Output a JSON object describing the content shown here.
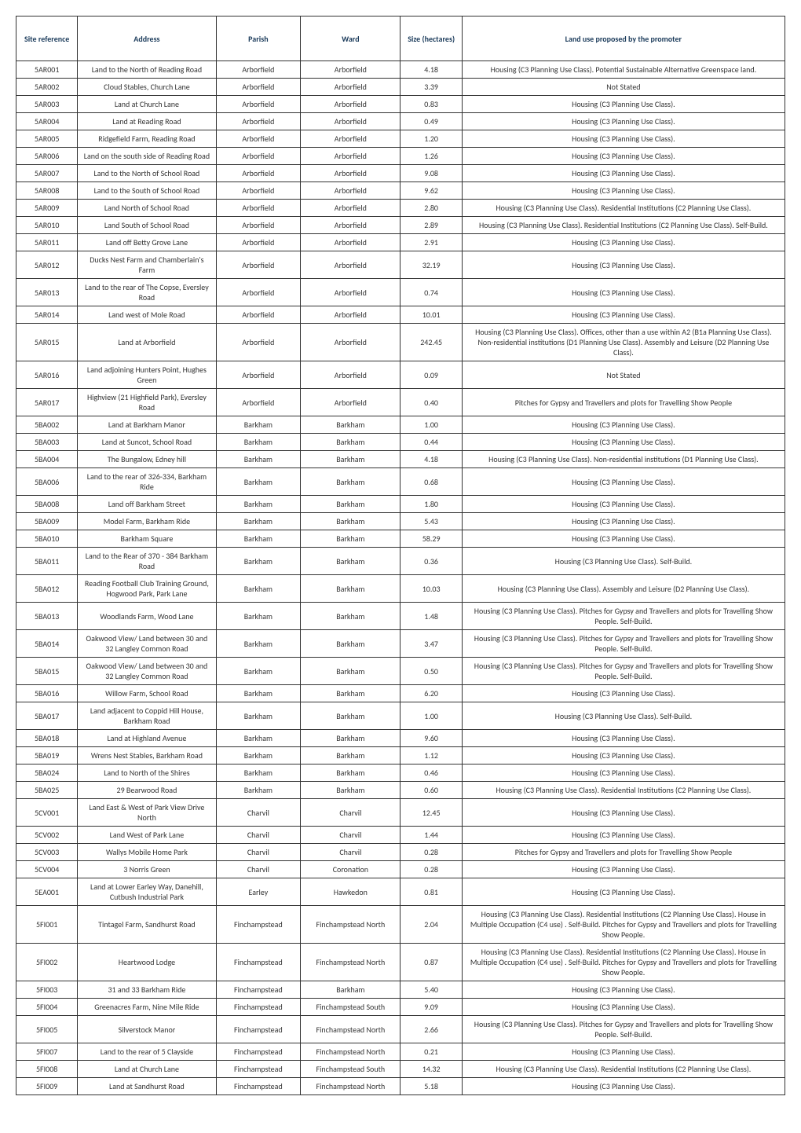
{
  "columns": [
    "Site reference",
    "Address",
    "Parish",
    "Ward",
    "Size (hectares)",
    "Land use proposed by the promoter"
  ],
  "rows": [
    [
      "5AR001",
      "Land to the North of Reading Road",
      "Arborfield",
      "Arborfield",
      "4.18",
      "Housing (C3 Planning Use Class). Potential Sustainable Alternative Greenspace land."
    ],
    [
      "5AR002",
      "Cloud Stables, Church Lane",
      "Arborfield",
      "Arborfield",
      "3.39",
      "Not Stated"
    ],
    [
      "5AR003",
      "Land at Church Lane",
      "Arborfield",
      "Arborfield",
      "0.83",
      "Housing (C3 Planning Use Class)."
    ],
    [
      "5AR004",
      "Land at Reading Road",
      "Arborfield",
      "Arborfield",
      "0.49",
      "Housing (C3 Planning Use Class)."
    ],
    [
      "5AR005",
      "Ridgefield Farm, Reading Road",
      "Arborfield",
      "Arborfield",
      "1.20",
      "Housing (C3 Planning Use Class)."
    ],
    [
      "5AR006",
      "Land on the south side of Reading Road",
      "Arborfield",
      "Arborfield",
      "1.26",
      "Housing (C3 Planning Use Class)."
    ],
    [
      "5AR007",
      "Land to the North of School Road",
      "Arborfield",
      "Arborfield",
      "9.08",
      "Housing (C3 Planning Use Class)."
    ],
    [
      "5AR008",
      "Land to the South of School Road",
      "Arborfield",
      "Arborfield",
      "9.62",
      "Housing (C3 Planning Use Class)."
    ],
    [
      "5AR009",
      "Land North of School Road",
      "Arborfield",
      "Arborfield",
      "2.80",
      "Housing (C3 Planning Use Class). Residential Institutions (C2 Planning Use Class)."
    ],
    [
      "5AR010",
      "Land South of School Road",
      "Arborfield",
      "Arborfield",
      "2.89",
      "Housing (C3 Planning Use Class). Residential Institutions (C2 Planning Use Class). Self-Build."
    ],
    [
      "5AR011",
      "Land off Betty Grove Lane",
      "Arborfield",
      "Arborfield",
      "2.91",
      "Housing (C3 Planning Use Class)."
    ],
    [
      "5AR012",
      "Ducks Nest Farm and Chamberlain's Farm",
      "Arborfield",
      "Arborfield",
      "32.19",
      "Housing (C3 Planning Use Class)."
    ],
    [
      "5AR013",
      "Land to the rear of The Copse, Eversley Road",
      "Arborfield",
      "Arborfield",
      "0.74",
      "Housing (C3 Planning Use Class)."
    ],
    [
      "5AR014",
      "Land west of Mole Road",
      "Arborfield",
      "Arborfield",
      "10.01",
      "Housing (C3 Planning Use Class)."
    ],
    [
      "5AR015",
      "Land at Arborfield",
      "Arborfield",
      "Arborfield",
      "242.45",
      "Housing (C3 Planning Use Class).  Offices, other than a use within A2 (B1a Planning Use Class). Non-residential institutions (D1 Planning Use Class). Assembly and Leisure (D2 Planning Use Class)."
    ],
    [
      "5AR016",
      "Land adjoining Hunters Point, Hughes Green",
      "Arborfield",
      "Arborfield",
      "0.09",
      "Not Stated"
    ],
    [
      "5AR017",
      "Highview (21 Highfield Park), Eversley Road",
      "Arborfield",
      "Arborfield",
      "0.40",
      "Pitches for Gypsy and Travellers and plots for  Travelling Show People"
    ],
    [
      "5BA002",
      "Land at Barkham Manor",
      "Barkham",
      "Barkham",
      "1.00",
      "Housing (C3 Planning Use Class)."
    ],
    [
      "5BA003",
      "Land at Suncot, School Road",
      "Barkham",
      "Barkham",
      "0.44",
      "Housing (C3 Planning Use Class)."
    ],
    [
      "5BA004",
      "The Bungalow, Edney hill",
      "Barkham",
      "Barkham",
      "4.18",
      "Housing (C3 Planning Use Class). Non-residential institutions (D1 Planning Use Class)."
    ],
    [
      "5BA006",
      "Land to the rear of 326-334, Barkham Ride",
      "Barkham",
      "Barkham",
      "0.68",
      "Housing (C3 Planning Use Class)."
    ],
    [
      "5BA008",
      "Land off Barkham Street",
      "Barkham",
      "Barkham",
      "1.80",
      "Housing (C3 Planning Use Class)."
    ],
    [
      "5BA009",
      "Model Farm, Barkham Ride",
      "Barkham",
      "Barkham",
      "5.43",
      "Housing (C3 Planning Use Class)."
    ],
    [
      "5BA010",
      "Barkham Square",
      "Barkham",
      "Barkham",
      "58.29",
      "Housing (C3 Planning Use Class)."
    ],
    [
      "5BA011",
      "Land to the Rear of 370 - 384 Barkham Road",
      "Barkham",
      "Barkham",
      "0.36",
      "Housing (C3 Planning Use Class). Self-Build."
    ],
    [
      "5BA012",
      "Reading Football Club Training Ground, Hogwood Park, Park Lane",
      "Barkham",
      "Barkham",
      "10.03",
      "Housing (C3 Planning Use Class). Assembly and Leisure (D2 Planning Use Class)."
    ],
    [
      "5BA013",
      "Woodlands Farm, Wood Lane",
      "Barkham",
      "Barkham",
      "1.48",
      "Housing (C3 Planning Use Class). Pitches for Gypsy and Travellers and plots for Travelling Show People. Self-Build."
    ],
    [
      "5BA014",
      "Oakwood View/ Land between 30 and 32 Langley Common Road",
      "Barkham",
      "Barkham",
      "3.47",
      "Housing (C3 Planning Use Class). Pitches for Gypsy and Travellers and plots for Travelling Show People. Self-Build."
    ],
    [
      "5BA015",
      "Oakwood View/ Land between 30 and 32 Langley Common Road",
      "Barkham",
      "Barkham",
      "0.50",
      "Housing (C3 Planning Use Class). Pitches for Gypsy and Travellers and plots for Travelling Show People. Self-Build."
    ],
    [
      "5BA016",
      "Willow Farm, School Road",
      "Barkham",
      "Barkham",
      "6.20",
      "Housing (C3 Planning Use Class)."
    ],
    [
      "5BA017",
      "Land adjacent to Coppid Hill House, Barkham Road",
      "Barkham",
      "Barkham",
      "1.00",
      "Housing (C3 Planning Use Class).  Self-Build."
    ],
    [
      "5BA018",
      "Land at Highland Avenue",
      "Barkham",
      "Barkham",
      "9.60",
      "Housing (C3 Planning Use Class)."
    ],
    [
      "5BA019",
      "Wrens Nest Stables, Barkham Road",
      "Barkham",
      "Barkham",
      "1.12",
      "Housing (C3 Planning Use Class)."
    ],
    [
      "5BA024",
      "Land to North of the Shires",
      "Barkham",
      "Barkham",
      "0.46",
      "Housing (C3 Planning Use Class)."
    ],
    [
      "5BA025",
      "29 Bearwood Road",
      "Barkham",
      "Barkham",
      "0.60",
      "Housing (C3 Planning Use Class). Residential Institutions (C2 Planning Use Class)."
    ],
    [
      "5CV001",
      "Land East & West of Park View Drive North",
      "Charvil",
      "Charvil",
      "12.45",
      "Housing (C3 Planning Use Class)."
    ],
    [
      "5CV002",
      "Land West of Park Lane",
      "Charvil",
      "Charvil",
      "1.44",
      "Housing (C3 Planning Use Class)."
    ],
    [
      "5CV003",
      "Wallys Mobile Home Park",
      "Charvil",
      "Charvil",
      "0.28",
      "Pitches for Gypsy and Travellers and plots for  Travelling Show People"
    ],
    [
      "5CV004",
      "3 Norris Green",
      "Charvil",
      "Coronation",
      "0.28",
      "Housing (C3 Planning Use Class)."
    ],
    [
      "5EA001",
      "Land at Lower Earley Way, Danehill, Cutbush Industrial Park",
      "Earley",
      "Hawkedon",
      "0.81",
      "Housing (C3 Planning Use Class)."
    ],
    [
      "5FI001",
      "Tintagel Farm, Sandhurst Road",
      "Finchampstead",
      "Finchampstead North",
      "2.04",
      "Housing (C3 Planning Use Class). Residential Institutions (C2 Planning Use Class).  House in Multiple Occupation (C4 use) . Self-Build. Pitches for Gypsy and Travellers and plots for Travelling Show People."
    ],
    [
      "5FI002",
      "Heartwood Lodge",
      "Finchampstead",
      "Finchampstead North",
      "0.87",
      "Housing (C3 Planning Use Class). Residential Institutions (C2 Planning Use Class).  House in Multiple Occupation (C4 use) . Self-Build. Pitches for Gypsy and Travellers and plots for Travelling Show People."
    ],
    [
      "5FI003",
      "31 and 33 Barkham Ride",
      "Finchampstead",
      "Barkham",
      "5.40",
      "Housing (C3 Planning Use Class)."
    ],
    [
      "5FI004",
      "Greenacres Farm, Nine Mile Ride",
      "Finchampstead",
      "Finchampstead South",
      "9.09",
      "Housing (C3 Planning Use Class)."
    ],
    [
      "5FI005",
      "Silverstock Manor",
      "Finchampstead",
      "Finchampstead North",
      "2.66",
      "Housing (C3 Planning Use Class). Pitches for Gypsy and Travellers and plots for Travelling Show People. Self-Build."
    ],
    [
      "5FI007",
      "Land to the rear of 5 Clayside",
      "Finchampstead",
      "Finchampstead North",
      "0.21",
      "Housing (C3 Planning Use Class)."
    ],
    [
      "5FI008",
      "Land at Church Lane",
      "Finchampstead",
      "Finchampstead South",
      "14.32",
      "Housing (C3 Planning Use Class). Residential Institutions (C2 Planning Use Class)."
    ],
    [
      "5FI009",
      "Land at Sandhurst Road",
      "Finchampstead",
      "Finchampstead North",
      "5.18",
      "Housing (C3 Planning Use Class)."
    ]
  ]
}
